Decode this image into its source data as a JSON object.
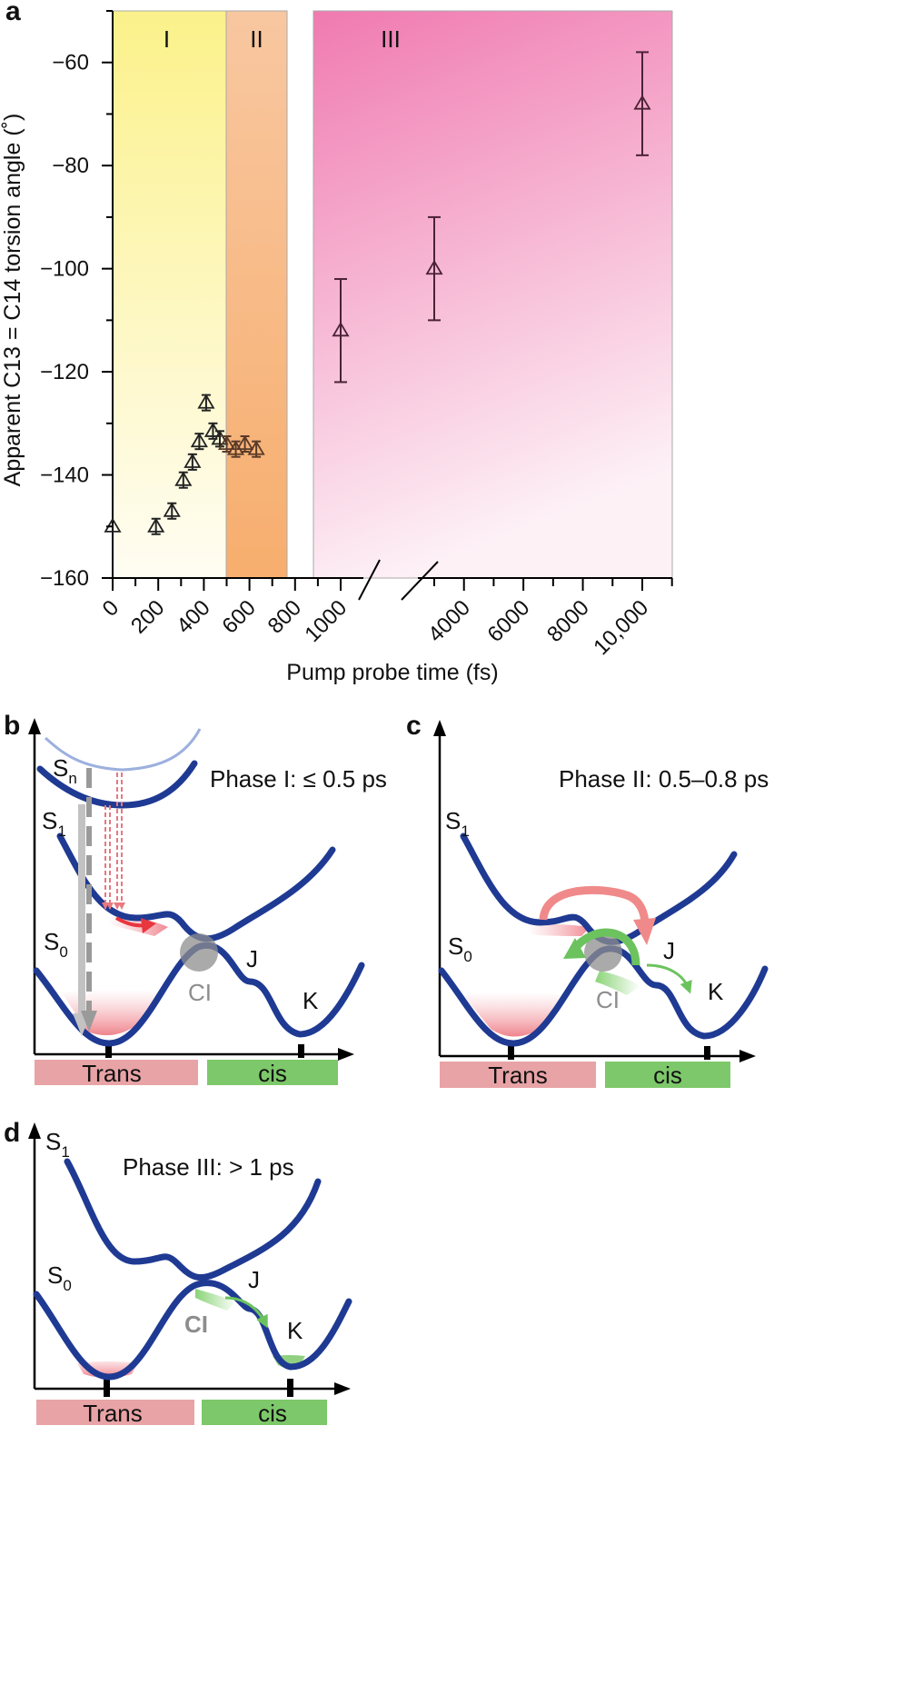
{
  "panel_labels": {
    "a": "a",
    "b": "b",
    "c": "c",
    "d": "d"
  },
  "chart_data": {
    "type": "scatter",
    "xlabel": "Pump probe time (fs)",
    "ylabel": "Apparent C13 = C14 torsion angle (˚)",
    "ylim": [
      -160,
      -50
    ],
    "yticks": [
      "−60",
      "−80",
      "−100",
      "−120",
      "−140",
      "−160"
    ],
    "yticks_values": [
      -60,
      -80,
      -100,
      -120,
      -140,
      -160
    ],
    "x_axis": "broken: linear 0–1000 fs segment, then linear 1000–10,000 fs segment",
    "xticks_seg1": [
      "0",
      "200",
      "400",
      "600",
      "800",
      "1000"
    ],
    "xticks_seg1_values": [
      0,
      200,
      400,
      600,
      800,
      1000
    ],
    "xticks_seg2": [
      "4000",
      "6000",
      "8000",
      "10,000"
    ],
    "xticks_seg2_values": [
      4000,
      6000,
      8000,
      10000
    ],
    "regions": [
      {
        "label": "I",
        "x_from": -10,
        "x_to": 480,
        "color_top": "#fbf28a",
        "color_bottom": "#fffdf2"
      },
      {
        "label": "II",
        "x_from": 480,
        "x_to": 780,
        "color_top": "#f7c49a",
        "color_bottom": "#f8b172"
      },
      {
        "label": "III",
        "x_from": 1000,
        "x_to": 10000,
        "color_top": "#f07ab0",
        "color_bottom": "#fdf0f6"
      }
    ],
    "series": [
      {
        "name": "C13=C14 torsion angle",
        "marker": "open triangle",
        "points": [
          {
            "x": 0,
            "y": -150,
            "err": 0
          },
          {
            "x": 190,
            "y": -150,
            "err": 1.5
          },
          {
            "x": 260,
            "y": -147,
            "err": 1.5
          },
          {
            "x": 310,
            "y": -141,
            "err": 1.5
          },
          {
            "x": 350,
            "y": -137.5,
            "err": 1.5
          },
          {
            "x": 380,
            "y": -133.5,
            "err": 1.5
          },
          {
            "x": 410,
            "y": -126,
            "err": 1.5
          },
          {
            "x": 440,
            "y": -131.5,
            "err": 1.5
          },
          {
            "x": 470,
            "y": -133,
            "err": 1.5
          },
          {
            "x": 500,
            "y": -134,
            "err": 1.5
          },
          {
            "x": 540,
            "y": -135,
            "err": 1.5
          },
          {
            "x": 580,
            "y": -134,
            "err": 1.5
          },
          {
            "x": 630,
            "y": -135,
            "err": 1.5
          },
          {
            "x": 1000,
            "y": -112,
            "err": 10
          },
          {
            "x": 3000,
            "y": -100,
            "err": 10
          },
          {
            "x": 10000,
            "y": -68,
            "err": 10
          }
        ]
      }
    ]
  },
  "panel_b": {
    "phase": "Phase I: ≤ 0.5 ps",
    "sn_label": "S",
    "sn_sub": "n",
    "s1_label": "S",
    "s1_sub": "1",
    "s0_label": "S",
    "s0_sub": "0",
    "ci": "CI",
    "j": "J",
    "k": "K",
    "trans": "Trans",
    "cis": "cis"
  },
  "panel_c": {
    "phase": "Phase II: 0.5–0.8 ps",
    "s1_label": "S",
    "s1_sub": "1",
    "s0_label": "S",
    "s0_sub": "0",
    "ci": "CI",
    "j": "J",
    "k": "K",
    "trans": "Trans",
    "cis": "cis"
  },
  "panel_d": {
    "phase": "Phase III: > 1 ps",
    "s1_label": "S",
    "s1_sub": "1",
    "s0_label": "S",
    "s0_sub": "0",
    "ci": "CI",
    "j": "J",
    "k": "K",
    "trans": "Trans",
    "cis": "cis"
  },
  "colors": {
    "curve": "#1f3a93",
    "trans_bar": "#e8a3a6",
    "cis_bar": "#7dc86a",
    "red_arrow": "#e8363e",
    "salmon_arrow": "#f08a8a",
    "green_arrow": "#6cc35e",
    "gray": "#9a9a9a"
  }
}
